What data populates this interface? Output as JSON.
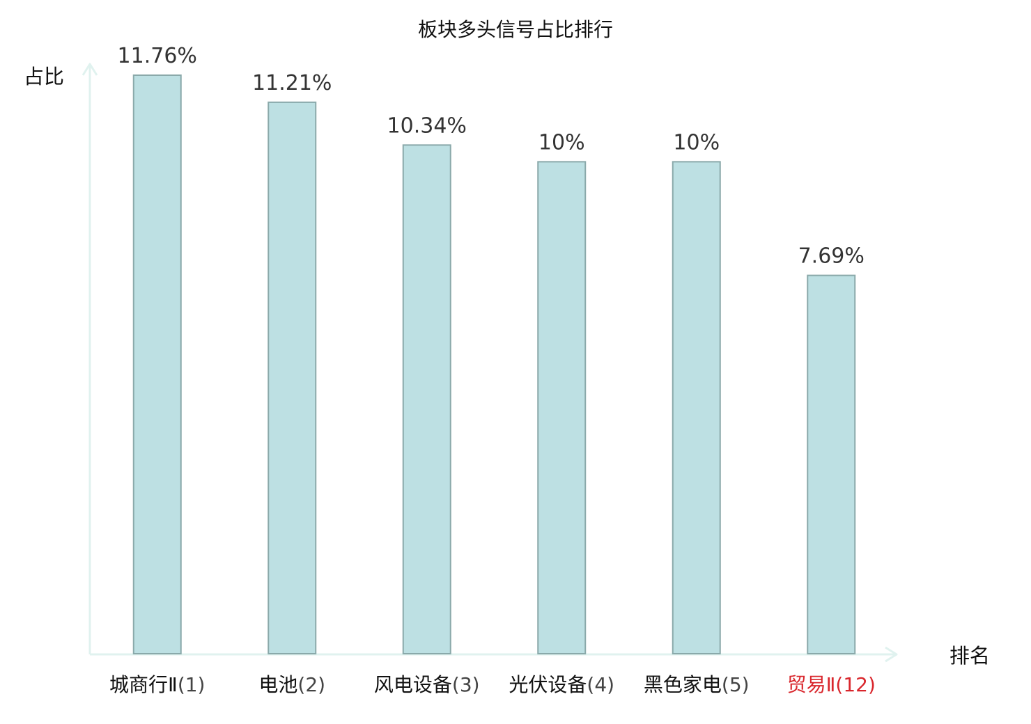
{
  "chart_data": {
    "type": "bar",
    "title": "板块多头信号占比排行",
    "ylabel": "占比",
    "xlabel": "排名",
    "ylim": [
      0,
      11.76
    ],
    "grid": false,
    "legend": "none",
    "bar_color": "#bde0e3",
    "bar_edge_color": "#8aa9aa",
    "axis_color": "#e0f2ef",
    "highlight_color": "#d9262c",
    "categories": [
      {
        "name": "城商行Ⅱ",
        "rank": "(1)",
        "highlight": false
      },
      {
        "name": "电池",
        "rank": "(2)",
        "highlight": false
      },
      {
        "name": "风电设备",
        "rank": "(3)",
        "highlight": false
      },
      {
        "name": "光伏设备",
        "rank": "(4)",
        "highlight": false
      },
      {
        "name": "黑色家电",
        "rank": "(5)",
        "highlight": false
      },
      {
        "name": "贸易Ⅱ",
        "rank": "(12)",
        "highlight": true
      }
    ],
    "values": [
      11.76,
      11.21,
      10.34,
      10,
      10,
      7.69
    ],
    "value_labels": [
      "11.76%",
      "11.21%",
      "10.34%",
      "10%",
      "10%",
      "7.69%"
    ]
  }
}
